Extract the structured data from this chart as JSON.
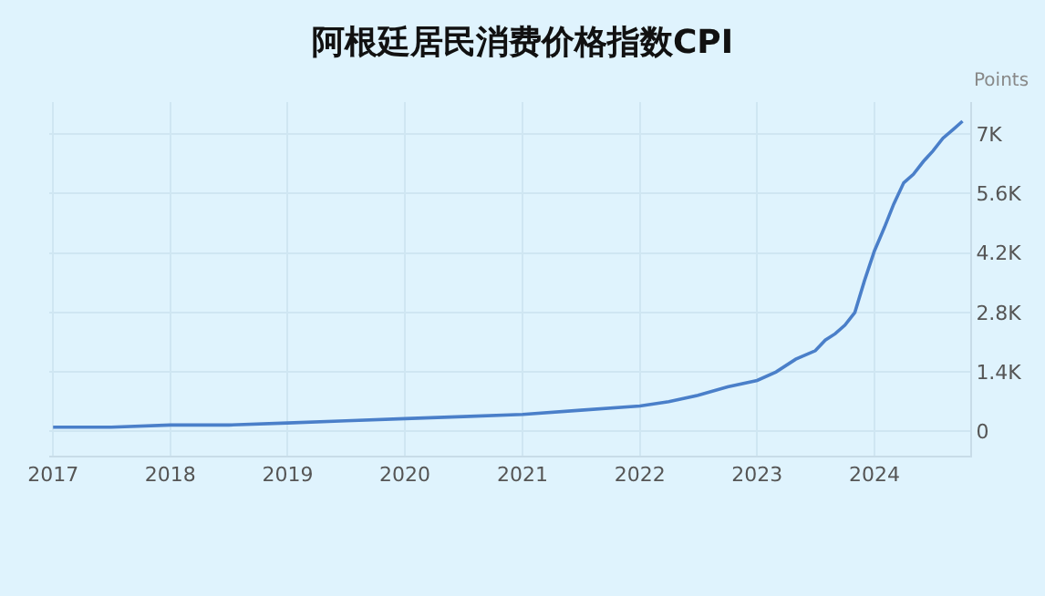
{
  "chart_data": {
    "type": "line",
    "title": "阿根廷居民消费价格指数CPI",
    "ylabel": "Points",
    "x": [
      "2017-01",
      "2017-07",
      "2018-01",
      "2018-07",
      "2019-01",
      "2019-07",
      "2020-01",
      "2020-07",
      "2021-01",
      "2021-07",
      "2022-01",
      "2022-04",
      "2022-07",
      "2022-10",
      "2023-01",
      "2023-03",
      "2023-05",
      "2023-07",
      "2023-08",
      "2023-09",
      "2023-10",
      "2023-11",
      "2023-12",
      "2024-01",
      "2024-02",
      "2024-03",
      "2024-04",
      "2024-05",
      "2024-06",
      "2024-07",
      "2024-08",
      "2024-09",
      "2024-10"
    ],
    "series": [
      {
        "color": "#4a7fc9",
        "values": [
          100,
          100,
          150,
          150,
          200,
          250,
          300,
          350,
          400,
          500,
          600,
          700,
          850,
          1050,
          1200,
          1400,
          1700,
          1900,
          2150,
          2300,
          2500,
          2800,
          3550,
          4250,
          4800,
          5350,
          5850,
          6050,
          6350,
          6600,
          6900,
          7100,
          7300
        ]
      }
    ],
    "xlim": [
      "2016-12-20",
      "2024-10-25"
    ],
    "xticks": [
      "2017",
      "2018",
      "2019",
      "2020",
      "2021",
      "2022",
      "2023",
      "2024"
    ],
    "ylim": [
      -570,
      7750
    ],
    "yticks": [
      0,
      {
        "value": 1400,
        "label": "1.4K"
      },
      {
        "value": 2800,
        "label": "2.8K"
      },
      {
        "value": 4200,
        "label": "4.2K"
      },
      {
        "value": 5600,
        "label": "5.6K"
      },
      {
        "value": 7000,
        "label": "7K"
      }
    ],
    "grid": true,
    "legend": false,
    "line_style": "solid",
    "marker": "none"
  }
}
